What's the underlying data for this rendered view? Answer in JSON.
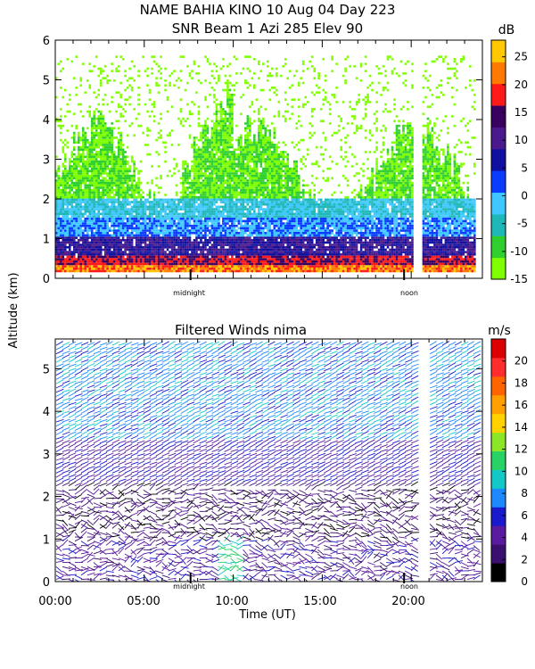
{
  "title_line1": "NAME BAHIA KINO  10 Aug 04 Day 223",
  "title_line2": "SNR Beam 1 Azi 285 Elev 90",
  "ylabel": "Altitude (km)",
  "xlabel": "Time (UT)",
  "x_tick_labels": [
    "00:00",
    "05:00",
    "10:00",
    "15:00",
    "20:00"
  ],
  "marker_midnight": "midnight",
  "marker_noon": "noon",
  "chart_data": [
    {
      "type": "heatmap",
      "title": "",
      "units_label": "dB",
      "xlim": [
        0,
        24
      ],
      "ylim": [
        0,
        6
      ],
      "y_ticks": [
        0,
        1,
        2,
        3,
        4,
        5,
        6
      ],
      "x_ticks_hours": [
        0,
        5,
        10,
        15,
        20
      ],
      "midnight_hour": 7.6,
      "noon_hour": 19.6,
      "data_gap_hours": [
        [
          20.1,
          20.6
        ]
      ],
      "colorbar": {
        "range": [
          -15,
          28
        ],
        "tick_values": [
          -15,
          -10,
          -5,
          0,
          5,
          10,
          15,
          20,
          25
        ],
        "tick_labels": [
          "-15",
          "-10",
          "-5",
          "0",
          "5",
          "10",
          "15",
          "20",
          "25"
        ],
        "colors": [
          "#7fff00",
          "#2fcf2f",
          "#1fb8b8",
          "#3ec8ff",
          "#0a3cff",
          "#1010a0",
          "#4a1a8c",
          "#3a0060",
          "#ff1a1a",
          "#ff7a00",
          "#ffc800"
        ]
      }
    },
    {
      "type": "heatmap",
      "title": "Filtered Winds nima",
      "units_label": "m/s",
      "xlim": [
        0,
        24
      ],
      "ylim": [
        0,
        5.7
      ],
      "y_ticks": [
        0,
        1,
        2,
        3,
        4,
        5
      ],
      "x_ticks_hours": [
        0,
        5,
        10,
        15,
        20
      ],
      "midnight_hour": 7.6,
      "noon_hour": 19.6,
      "data_gap_hours": [
        [
          20.3,
          21.0
        ]
      ],
      "colorbar": {
        "range": [
          0,
          22
        ],
        "tick_values": [
          0,
          2,
          4,
          6,
          8,
          10,
          12,
          14,
          16,
          18,
          20
        ],
        "tick_labels": [
          "0",
          "2",
          "4",
          "6",
          "8",
          "10",
          "12",
          "14",
          "16",
          "18",
          "20"
        ],
        "colors": [
          "#000000",
          "#3a0f6e",
          "#5a1aa0",
          "#1a1acc",
          "#1e88ff",
          "#14c8c8",
          "#28d264",
          "#8ce628",
          "#ffd200",
          "#ffa000",
          "#ff6400",
          "#ff2d2d",
          "#dc0000"
        ]
      }
    }
  ]
}
